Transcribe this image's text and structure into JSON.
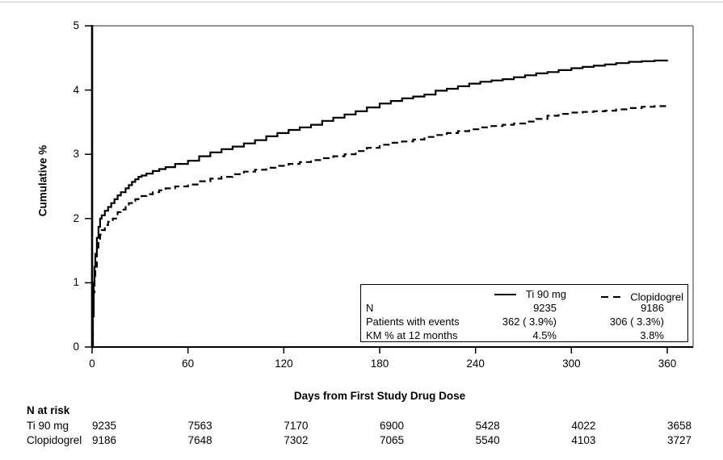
{
  "chart_data": {
    "type": "line",
    "subtype": "kaplan-meier-step",
    "title": "",
    "xlabel": "Days from First Study Drug Dose",
    "ylabel": "Cumulative %",
    "xlim": [
      0,
      360
    ],
    "ylim": [
      0,
      5
    ],
    "x_ticks": [
      "0",
      "60",
      "120",
      "180",
      "240",
      "300",
      "360"
    ],
    "x_tick_values": [
      0,
      60,
      120,
      180,
      240,
      300,
      360
    ],
    "y_ticks": [
      "0",
      "1",
      "2",
      "3",
      "4",
      "5"
    ],
    "y_tick_values": [
      0,
      1,
      2,
      3,
      4,
      5
    ],
    "grid": false,
    "legend_position": "inside-bottom-right",
    "series": [
      {
        "name": "Ti 90 mg",
        "style": "solid",
        "color": "#000000",
        "points": [
          [
            0,
            0
          ],
          [
            0.5,
            0.55
          ],
          [
            1,
            1.0
          ],
          [
            1.5,
            1.25
          ],
          [
            2,
            1.45
          ],
          [
            3,
            1.7
          ],
          [
            4,
            1.87
          ],
          [
            5,
            2.0
          ],
          [
            6,
            2.05
          ],
          [
            8,
            2.12
          ],
          [
            10,
            2.18
          ],
          [
            12,
            2.24
          ],
          [
            14,
            2.3
          ],
          [
            16,
            2.36
          ],
          [
            18,
            2.41
          ],
          [
            21,
            2.47
          ],
          [
            23,
            2.52
          ],
          [
            25,
            2.57
          ],
          [
            27,
            2.61
          ],
          [
            29,
            2.65
          ],
          [
            31,
            2.67
          ],
          [
            34,
            2.7
          ],
          [
            38,
            2.74
          ],
          [
            42,
            2.77
          ],
          [
            46,
            2.8
          ],
          [
            52,
            2.85
          ],
          [
            60,
            2.9
          ],
          [
            67,
            2.97
          ],
          [
            74,
            3.03
          ],
          [
            81,
            3.08
          ],
          [
            88,
            3.12
          ],
          [
            95,
            3.17
          ],
          [
            102,
            3.22
          ],
          [
            109,
            3.28
          ],
          [
            116,
            3.33
          ],
          [
            123,
            3.38
          ],
          [
            130,
            3.42
          ],
          [
            137,
            3.46
          ],
          [
            144,
            3.52
          ],
          [
            151,
            3.57
          ],
          [
            158,
            3.62
          ],
          [
            165,
            3.67
          ],
          [
            172,
            3.73
          ],
          [
            180,
            3.79
          ],
          [
            187,
            3.83
          ],
          [
            194,
            3.87
          ],
          [
            201,
            3.9
          ],
          [
            208,
            3.93
          ],
          [
            215,
            3.99
          ],
          [
            222,
            4.02
          ],
          [
            229,
            4.06
          ],
          [
            236,
            4.1
          ],
          [
            243,
            4.13
          ],
          [
            250,
            4.15
          ],
          [
            257,
            4.17
          ],
          [
            264,
            4.2
          ],
          [
            271,
            4.23
          ],
          [
            278,
            4.26
          ],
          [
            285,
            4.28
          ],
          [
            292,
            4.31
          ],
          [
            300,
            4.34
          ],
          [
            307,
            4.36
          ],
          [
            314,
            4.38
          ],
          [
            321,
            4.4
          ],
          [
            328,
            4.42
          ],
          [
            336,
            4.44
          ],
          [
            344,
            4.45
          ],
          [
            352,
            4.46
          ],
          [
            360,
            4.47
          ]
        ]
      },
      {
        "name": "Clopidogrel",
        "style": "dashed",
        "color": "#000000",
        "points": [
          [
            0,
            0
          ],
          [
            0.5,
            0.45
          ],
          [
            1,
            0.85
          ],
          [
            1.5,
            1.05
          ],
          [
            2,
            1.25
          ],
          [
            3,
            1.5
          ],
          [
            4,
            1.65
          ],
          [
            5,
            1.75
          ],
          [
            6,
            1.82
          ],
          [
            8,
            1.9
          ],
          [
            10,
            1.95
          ],
          [
            13,
            2.0
          ],
          [
            16,
            2.1
          ],
          [
            18,
            2.14
          ],
          [
            21,
            2.2
          ],
          [
            23,
            2.24
          ],
          [
            25,
            2.27
          ],
          [
            27,
            2.3
          ],
          [
            29,
            2.32
          ],
          [
            31,
            2.35
          ],
          [
            34,
            2.38
          ],
          [
            38,
            2.41
          ],
          [
            42,
            2.44
          ],
          [
            46,
            2.47
          ],
          [
            52,
            2.5
          ],
          [
            60,
            2.53
          ],
          [
            67,
            2.58
          ],
          [
            74,
            2.62
          ],
          [
            81,
            2.65
          ],
          [
            88,
            2.69
          ],
          [
            95,
            2.73
          ],
          [
            102,
            2.76
          ],
          [
            109,
            2.79
          ],
          [
            116,
            2.82
          ],
          [
            123,
            2.85
          ],
          [
            130,
            2.88
          ],
          [
            137,
            2.91
          ],
          [
            144,
            2.94
          ],
          [
            151,
            2.97
          ],
          [
            158,
            3.0
          ],
          [
            165,
            3.05
          ],
          [
            172,
            3.1
          ],
          [
            180,
            3.15
          ],
          [
            187,
            3.18
          ],
          [
            194,
            3.2
          ],
          [
            201,
            3.23
          ],
          [
            208,
            3.27
          ],
          [
            215,
            3.3
          ],
          [
            222,
            3.33
          ],
          [
            229,
            3.36
          ],
          [
            236,
            3.39
          ],
          [
            243,
            3.42
          ],
          [
            250,
            3.44
          ],
          [
            257,
            3.46
          ],
          [
            264,
            3.48
          ],
          [
            271,
            3.51
          ],
          [
            278,
            3.55
          ],
          [
            285,
            3.6
          ],
          [
            292,
            3.63
          ],
          [
            300,
            3.65
          ],
          [
            307,
            3.66
          ],
          [
            314,
            3.67
          ],
          [
            321,
            3.68
          ],
          [
            328,
            3.7
          ],
          [
            336,
            3.72
          ],
          [
            344,
            3.74
          ],
          [
            352,
            3.75
          ],
          [
            360,
            3.77
          ]
        ]
      }
    ]
  },
  "legend": {
    "rows": [
      {
        "label": "N",
        "ti": "9235",
        "clo": "9186"
      },
      {
        "label": "Patients with events",
        "ti": "362 ( 3.9%)",
        "clo": "306 ( 3.3%)"
      },
      {
        "label": "KM % at 12 months",
        "ti": "4.5%",
        "clo": "3.8%"
      }
    ]
  },
  "n_at_risk": {
    "header": "N at risk",
    "rows": [
      {
        "label": "Ti 90 mg",
        "values": [
          "9235",
          "7563",
          "7170",
          "6900",
          "5428",
          "4022",
          "3658"
        ]
      },
      {
        "label": "Clopidogrel",
        "values": [
          "9186",
          "7648",
          "7302",
          "7065",
          "5540",
          "4103",
          "3727"
        ]
      }
    ]
  },
  "colors": {
    "line": "#000000",
    "axis": "#000000",
    "frame": "#6e6e6e",
    "text": "#000000",
    "background": "#ffffff"
  }
}
